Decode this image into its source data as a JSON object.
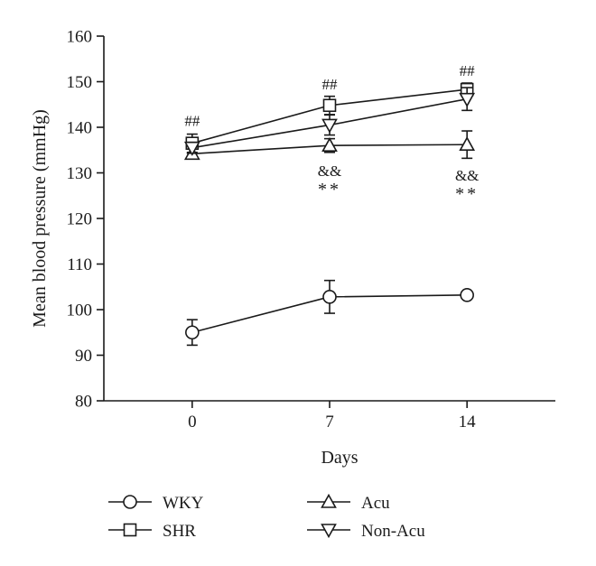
{
  "chart_data": {
    "type": "line",
    "title": "",
    "xlabel": "Days",
    "ylabel": "Mean blood pressure (mmHg)",
    "x": [
      0,
      7,
      14
    ],
    "x_tick_labels": [
      "0",
      "7",
      "14"
    ],
    "xlim": [
      -4.5,
      18.5
    ],
    "ylim": [
      80,
      160
    ],
    "y_ticks": [
      80,
      90,
      100,
      110,
      120,
      130,
      140,
      150,
      160
    ],
    "grid": false,
    "legend_placement": "bottom",
    "series": [
      {
        "name": "WKY",
        "marker": "circle",
        "values": [
          95.0,
          102.8,
          103.2
        ],
        "errors": [
          2.8,
          3.6,
          0.5
        ]
      },
      {
        "name": "SHR",
        "marker": "square",
        "values": [
          136.5,
          144.8,
          148.3
        ],
        "errors": [
          2.0,
          2.0,
          1.4
        ]
      },
      {
        "name": "Acu",
        "marker": "triangle-up",
        "values": [
          134.2,
          136.0,
          136.2
        ],
        "errors": [
          1.0,
          1.5,
          3.0
        ]
      },
      {
        "name": "Non-Acu",
        "marker": "triangle-down",
        "values": [
          135.5,
          140.5,
          146.2
        ],
        "errors": [
          1.2,
          2.2,
          2.5
        ]
      }
    ],
    "annotations": [
      {
        "text": "##",
        "x": 0,
        "y": 141.5,
        "style": "hash"
      },
      {
        "text": "##",
        "x": 7,
        "y": 149.5,
        "style": "hash"
      },
      {
        "text": "##",
        "x": 14,
        "y": 152.5,
        "style": "hash"
      },
      {
        "text": "&&",
        "x": 7,
        "y": 130.5,
        "style": "amp"
      },
      {
        "text": "**",
        "x": 7,
        "y": 126.3,
        "style": "star"
      },
      {
        "text": "&&",
        "x": 14,
        "y": 129.5,
        "style": "amp"
      },
      {
        "text": "**",
        "x": 14,
        "y": 125.3,
        "style": "star"
      }
    ]
  }
}
